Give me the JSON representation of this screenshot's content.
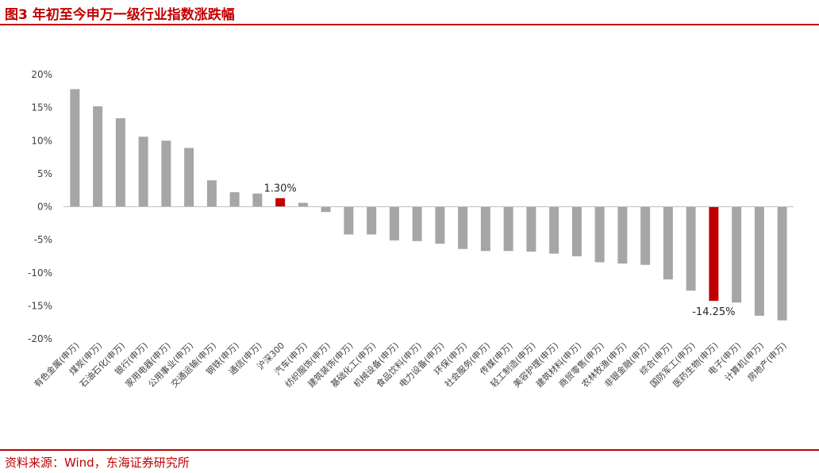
{
  "figure": {
    "title": "图3  年初至今申万一级行业指数涨跌幅",
    "source": "资料来源：Wind，东海证券研究所"
  },
  "colors": {
    "bar": "#a6a6a6",
    "highlight": "#c00000",
    "axis_text": "#404040",
    "rule": "#c00000"
  },
  "chart_data": {
    "type": "bar",
    "title": "",
    "xlabel": "",
    "ylabel": "",
    "ylim": [
      -20,
      20
    ],
    "yticks": [
      "20%",
      "15%",
      "10%",
      "5%",
      "0%",
      "-5%",
      "-10%",
      "-15%",
      "-20%"
    ],
    "grid": false,
    "legend": "none",
    "categories": [
      "有色金属(申万)",
      "煤炭(申万)",
      "石油石化(申万)",
      "银行(申万)",
      "家用电器(申万)",
      "公用事业(申万)",
      "交通运输(申万)",
      "钢铁(申万)",
      "通信(申万)",
      "沪深300",
      "汽车(申万)",
      "纺织服饰(申万)",
      "建筑装饰(申万)",
      "基础化工(申万)",
      "机械设备(申万)",
      "食品饮料(申万)",
      "电力设备(申万)",
      "环保(申万)",
      "社会服务(申万)",
      "传媒(申万)",
      "轻工制造(申万)",
      "美容护理(申万)",
      "建筑材料(申万)",
      "商贸零售(申万)",
      "农林牧渔(申万)",
      "非银金融(申万)",
      "综合(申万)",
      "国防军工(申万)",
      "医药生物(申万)",
      "电子(申万)",
      "计算机(申万)",
      "房地产(申万)"
    ],
    "values": [
      17.8,
      15.2,
      13.4,
      10.6,
      10.0,
      8.9,
      4.0,
      2.2,
      2.0,
      1.3,
      0.6,
      -0.8,
      -4.2,
      -4.2,
      -5.1,
      -5.2,
      -5.6,
      -6.4,
      -6.7,
      -6.7,
      -6.8,
      -7.1,
      -7.5,
      -8.4,
      -8.6,
      -8.8,
      -11.0,
      -12.7,
      -14.25,
      -14.5,
      -16.5,
      -17.2
    ],
    "highlight_index": [
      9,
      28
    ],
    "data_labels": [
      {
        "index": 9,
        "text": "1.30%"
      },
      {
        "index": 28,
        "text": "-14.25%"
      }
    ]
  }
}
